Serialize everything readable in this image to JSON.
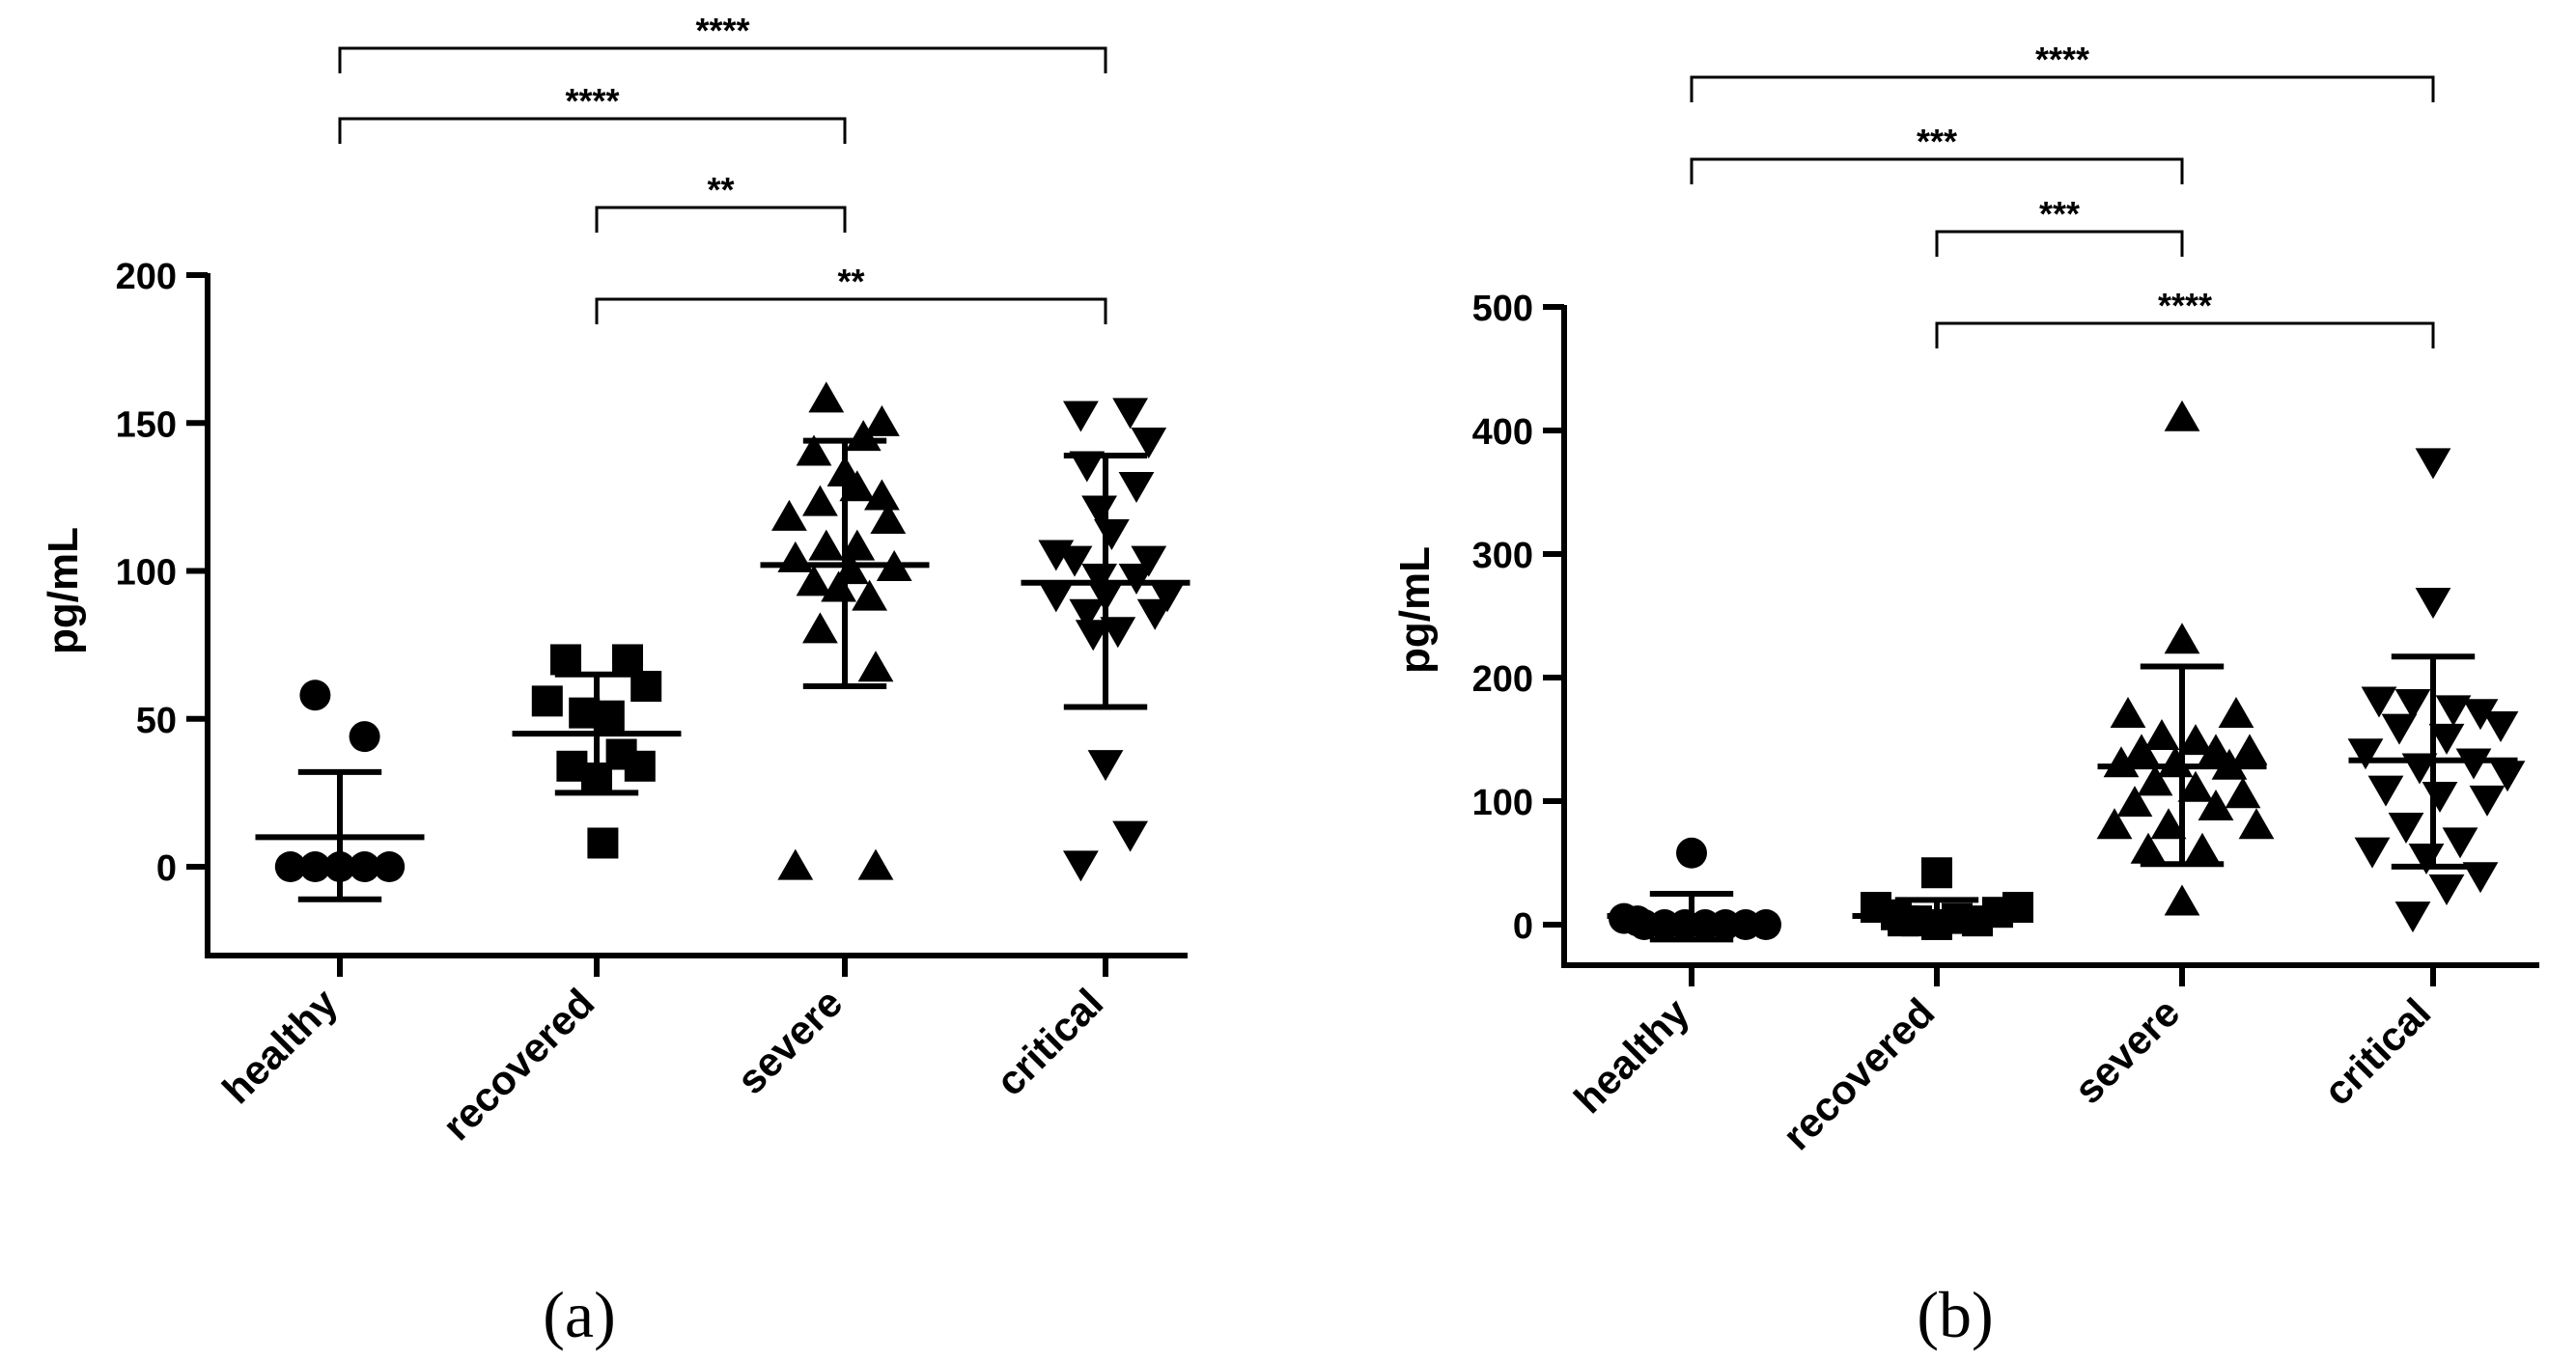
{
  "chart_data": [
    {
      "type": "scatter",
      "panel_label": "(a)",
      "ylabel": "pg/mL",
      "ylim": [
        -30,
        200
      ],
      "yticks": [
        "0",
        "50",
        "100",
        "150",
        "200"
      ],
      "ytick_values": [
        0,
        50,
        100,
        150,
        200
      ],
      "categories": [
        "healthy",
        "recovered",
        "severe",
        "critical"
      ],
      "groups": [
        {
          "name": "healthy",
          "marker": "circle",
          "mean": 10,
          "sd_low": -11,
          "sd_high": 32,
          "points": [
            [
              0.84,
              0
            ],
            [
              0.92,
              0
            ],
            [
              1.0,
              0
            ],
            [
              1.08,
              0
            ],
            [
              1.16,
              0
            ],
            [
              0.92,
              58
            ],
            [
              1.08,
              44
            ]
          ]
        },
        {
          "name": "recovered",
          "marker": "square",
          "mean": 45,
          "sd_low": 25,
          "sd_high": 65,
          "points": [
            [
              1.9,
              70
            ],
            [
              1.96,
              52
            ],
            [
              2.04,
              51
            ],
            [
              2.1,
              70
            ],
            [
              2.16,
              61
            ],
            [
              1.84,
              56
            ],
            [
              1.92,
              34
            ],
            [
              2.08,
              38
            ],
            [
              2.14,
              34
            ],
            [
              2.02,
              8
            ],
            [
              2.0,
              30
            ]
          ]
        },
        {
          "name": "severe",
          "marker": "triangle-up",
          "mean": 102,
          "sd_low": 61,
          "sd_high": 144,
          "points": [
            [
              1.94,
              158
            ],
            [
              2.12,
              150
            ],
            [
              2.06,
              145
            ],
            [
              1.9,
              140
            ],
            [
              2.0,
              133
            ],
            [
              2.04,
              128
            ],
            [
              1.92,
              123
            ],
            [
              2.12,
              125
            ],
            [
              1.82,
              118
            ],
            [
              2.14,
              117
            ],
            [
              1.94,
              108
            ],
            [
              2.04,
              108
            ],
            [
              1.84,
              104
            ],
            [
              2.02,
              100
            ],
            [
              1.9,
              96
            ],
            [
              2.16,
              101
            ],
            [
              1.98,
              94
            ],
            [
              2.08,
              91
            ],
            [
              1.92,
              80
            ],
            [
              2.1,
              67
            ],
            [
              1.84,
              0
            ],
            [
              2.1,
              0
            ]
          ]
        },
        {
          "name": "critical",
          "marker": "triangle-down",
          "mean": 96,
          "sd_low": 54,
          "sd_high": 139,
          "points": [
            [
              1.92,
              153
            ],
            [
              2.08,
              154
            ],
            [
              2.14,
              144
            ],
            [
              1.94,
              136
            ],
            [
              2.1,
              129
            ],
            [
              1.98,
              121
            ],
            [
              2.02,
              113
            ],
            [
              1.84,
              106
            ],
            [
              1.9,
              104
            ],
            [
              2.14,
              104
            ],
            [
              1.98,
              98
            ],
            [
              2.1,
              98
            ],
            [
              1.84,
              92
            ],
            [
              2.0,
              92
            ],
            [
              2.2,
              92
            ],
            [
              1.94,
              86
            ],
            [
              2.16,
              86
            ],
            [
              2.04,
              80
            ],
            [
              1.96,
              79
            ],
            [
              2.0,
              35
            ],
            [
              2.08,
              11
            ],
            [
              1.92,
              1
            ]
          ]
        }
      ],
      "brackets": [
        {
          "from": "healthy",
          "to": "critical",
          "label": "****"
        },
        {
          "from": "healthy",
          "to": "severe",
          "label": "****"
        },
        {
          "from": "recovered",
          "to": "severe",
          "label": "**"
        },
        {
          "from": "recovered",
          "to": "critical",
          "label": "**"
        }
      ]
    },
    {
      "type": "scatter",
      "panel_label": "(b)",
      "ylabel": "pg/mL",
      "ylim": [
        -30,
        500
      ],
      "yticks": [
        "0",
        "100",
        "200",
        "300",
        "400",
        "500"
      ],
      "ytick_values": [
        0,
        100,
        200,
        300,
        400,
        500
      ],
      "categories": [
        "healthy",
        "recovered",
        "severe",
        "critical"
      ],
      "groups": [
        {
          "name": "healthy",
          "marker": "circle",
          "mean": 7,
          "sd_low": -12,
          "sd_high": 25,
          "points": [
            [
              0.8,
              5
            ],
            [
              0.86,
              0
            ],
            [
              0.92,
              0
            ],
            [
              0.98,
              0
            ],
            [
              1.04,
              0
            ],
            [
              1.1,
              0
            ],
            [
              1.16,
              0
            ],
            [
              1.22,
              0
            ],
            [
              0.84,
              3
            ],
            [
              1.0,
              58
            ]
          ]
        },
        {
          "name": "recovered",
          "marker": "square",
          "mean": 7,
          "sd_low": -5,
          "sd_high": 20,
          "points": [
            [
              1.82,
              14
            ],
            [
              1.88,
              8
            ],
            [
              1.94,
              3
            ],
            [
              2.0,
              0
            ],
            [
              2.06,
              5
            ],
            [
              2.12,
              3
            ],
            [
              2.18,
              10
            ],
            [
              2.24,
              14
            ],
            [
              1.9,
              3
            ],
            [
              2.0,
              42
            ]
          ]
        },
        {
          "name": "severe",
          "marker": "triangle-up",
          "mean": 128,
          "sd_low": 49,
          "sd_high": 209,
          "points": [
            [
              2.0,
              410
            ],
            [
              2.0,
              230
            ],
            [
              1.84,
              170
            ],
            [
              2.16,
              170
            ],
            [
              1.94,
              152
            ],
            [
              2.04,
              148
            ],
            [
              1.88,
              140
            ],
            [
              2.1,
              140
            ],
            [
              2.2,
              140
            ],
            [
              1.82,
              130
            ],
            [
              1.98,
              130
            ],
            [
              2.14,
              128
            ],
            [
              1.92,
              115
            ],
            [
              2.04,
              110
            ],
            [
              2.18,
              105
            ],
            [
              1.86,
              98
            ],
            [
              2.1,
              95
            ],
            [
              1.8,
              80
            ],
            [
              1.96,
              80
            ],
            [
              2.22,
              80
            ],
            [
              1.9,
              60
            ],
            [
              2.06,
              60
            ],
            [
              2.0,
              18
            ]
          ]
        },
        {
          "name": "critical",
          "marker": "triangle-down",
          "mean": 133,
          "sd_low": 47,
          "sd_high": 217,
          "points": [
            [
              2.0,
              375
            ],
            [
              2.0,
              262
            ],
            [
              1.84,
              182
            ],
            [
              1.94,
              180
            ],
            [
              2.06,
              175
            ],
            [
              2.14,
              172
            ],
            [
              2.2,
              162
            ],
            [
              1.9,
              160
            ],
            [
              2.04,
              152
            ],
            [
              1.8,
              140
            ],
            [
              2.12,
              132
            ],
            [
              1.96,
              128
            ],
            [
              2.22,
              122
            ],
            [
              1.86,
              110
            ],
            [
              2.02,
              105
            ],
            [
              2.16,
              102
            ],
            [
              1.92,
              80
            ],
            [
              2.08,
              68
            ],
            [
              1.82,
              60
            ],
            [
              1.98,
              55
            ],
            [
              2.14,
              40
            ],
            [
              2.04,
              30
            ],
            [
              1.94,
              8
            ]
          ]
        }
      ],
      "brackets": [
        {
          "from": "healthy",
          "to": "critical",
          "label": "****"
        },
        {
          "from": "healthy",
          "to": "severe",
          "label": "***"
        },
        {
          "from": "recovered",
          "to": "severe",
          "label": "***"
        },
        {
          "from": "recovered",
          "to": "critical",
          "label": "****"
        }
      ]
    }
  ]
}
